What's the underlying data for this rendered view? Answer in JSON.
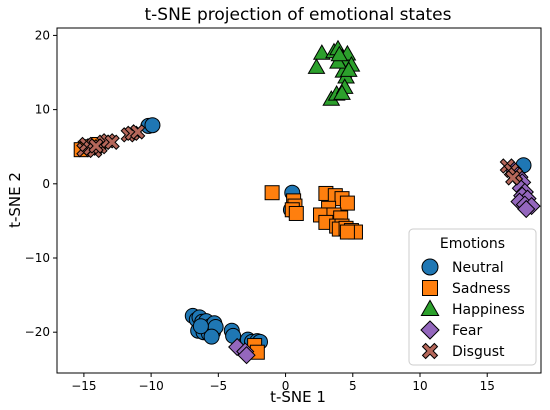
{
  "chart_data": {
    "type": "scatter",
    "title": "t-SNE projection of emotional states",
    "xlabel": "t-SNE 1",
    "ylabel": "t-SNE 2",
    "xlim": [
      -17,
      19
    ],
    "ylim": [
      -25.5,
      21
    ],
    "xticks": [
      -15,
      -10,
      -5,
      0,
      5,
      10,
      15
    ],
    "yticks": [
      -20,
      -10,
      0,
      10,
      20
    ],
    "grid": false,
    "legend": {
      "title": "Emotions",
      "placement": "lower-right"
    },
    "series": [
      {
        "name": "Neutral",
        "marker": "circle",
        "color": "#1f77b4",
        "points": [
          [
            -10.2,
            7.8
          ],
          [
            -9.9,
            7.9
          ],
          [
            -6.9,
            -17.8
          ],
          [
            -6.6,
            -18.3
          ],
          [
            -6.4,
            -18.0
          ],
          [
            -6.2,
            -18.6
          ],
          [
            -5.9,
            -18.5
          ],
          [
            -5.6,
            -19.2
          ],
          [
            -5.3,
            -18.8
          ],
          [
            -6.5,
            -19.8
          ],
          [
            -6.1,
            -20.0
          ],
          [
            -5.7,
            -20.2
          ],
          [
            -5.4,
            -20.0
          ],
          [
            -5.2,
            -19.3
          ],
          [
            -5.5,
            -20.6
          ],
          [
            -6.3,
            -19.2
          ],
          [
            -4.0,
            -19.8
          ],
          [
            -3.9,
            -20.5
          ],
          [
            -2.8,
            -21.0
          ],
          [
            -2.5,
            -21.3
          ],
          [
            -2.1,
            -21.2
          ],
          [
            -1.9,
            -21.3
          ],
          [
            0.5,
            -1.2
          ],
          [
            0.4,
            -3.5
          ],
          [
            17.7,
            2.5
          ]
        ]
      },
      {
        "name": "Sadness",
        "marker": "square",
        "color": "#ff7f0e",
        "points": [
          [
            -14.9,
            4.8
          ],
          [
            -14.6,
            5.0
          ],
          [
            -14.2,
            5.1
          ],
          [
            -13.9,
            5.3
          ],
          [
            -15.2,
            4.6
          ],
          [
            -1.0,
            -1.2
          ],
          [
            0.6,
            -2.3
          ],
          [
            0.7,
            -3.0
          ],
          [
            0.5,
            -3.5
          ],
          [
            0.8,
            -4.0
          ],
          [
            3.0,
            -1.3
          ],
          [
            3.7,
            -1.6
          ],
          [
            4.2,
            -2.0
          ],
          [
            4.6,
            -2.6
          ],
          [
            3.2,
            -3.3
          ],
          [
            2.6,
            -4.2
          ],
          [
            3.6,
            -4.2
          ],
          [
            4.1,
            -4.6
          ],
          [
            3.0,
            -5.2
          ],
          [
            3.8,
            -5.7
          ],
          [
            4.2,
            -5.7
          ],
          [
            4.0,
            -6.1
          ],
          [
            4.5,
            -6.0
          ],
          [
            4.9,
            -6.3
          ],
          [
            5.2,
            -6.5
          ],
          [
            4.6,
            -6.5
          ],
          [
            -2.3,
            -21.8
          ],
          [
            -2.1,
            -22.7
          ]
        ]
      },
      {
        "name": "Happiness",
        "marker": "triangle",
        "color": "#2ca02c",
        "points": [
          [
            2.7,
            17.6
          ],
          [
            2.3,
            15.7
          ],
          [
            3.4,
            11.4
          ],
          [
            3.8,
            12.1
          ],
          [
            3.6,
            17.8
          ],
          [
            3.9,
            18.2
          ],
          [
            4.2,
            17.0
          ],
          [
            4.4,
            16.5
          ],
          [
            4.6,
            17.5
          ],
          [
            4.9,
            16.0
          ],
          [
            4.3,
            15.2
          ],
          [
            4.5,
            14.4
          ],
          [
            4.4,
            13.0
          ],
          [
            4.2,
            12.2
          ],
          [
            3.9,
            16.4
          ],
          [
            4.7,
            15.3
          ],
          [
            4.0,
            17.4
          ]
        ]
      },
      {
        "name": "Fear",
        "marker": "diamond",
        "color": "#9467bd",
        "points": [
          [
            -3.6,
            -22.0
          ],
          [
            -3.0,
            -22.6
          ],
          [
            -2.9,
            -23.1
          ],
          [
            16.9,
            2.0
          ],
          [
            17.2,
            1.3
          ],
          [
            17.4,
            0.9
          ],
          [
            17.6,
            0.2
          ],
          [
            17.5,
            -0.6
          ],
          [
            17.8,
            -1.1
          ],
          [
            17.6,
            -1.6
          ],
          [
            18.0,
            -2.0
          ],
          [
            17.4,
            -2.4
          ],
          [
            17.8,
            -2.8
          ],
          [
            18.3,
            -3.0
          ],
          [
            17.9,
            -3.4
          ]
        ]
      },
      {
        "name": "Disgust",
        "marker": "x",
        "color": "#b5675a",
        "points": [
          [
            -15.0,
            4.6
          ],
          [
            -14.8,
            5.3
          ],
          [
            -14.5,
            4.8
          ],
          [
            -14.2,
            4.5
          ],
          [
            -13.8,
            5.0
          ],
          [
            -13.5,
            5.6
          ],
          [
            -13.2,
            5.8
          ],
          [
            -12.9,
            5.6
          ],
          [
            -14.1,
            5.1
          ],
          [
            -11.7,
            6.6
          ],
          [
            -11.4,
            6.8
          ],
          [
            -11.0,
            7.0
          ],
          [
            16.5,
            2.4
          ],
          [
            16.8,
            1.8
          ],
          [
            17.1,
            1.2
          ],
          [
            16.9,
            0.8
          ]
        ]
      }
    ]
  }
}
